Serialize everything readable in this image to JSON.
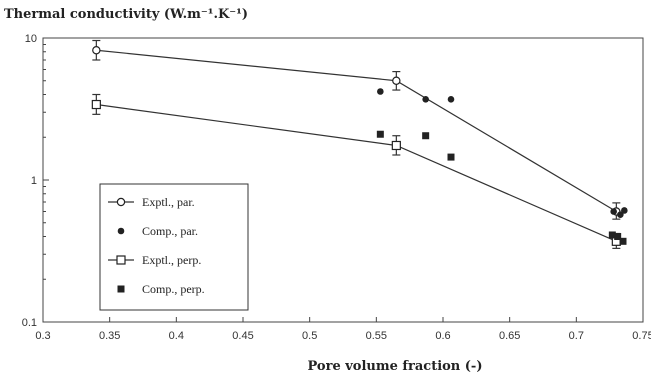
{
  "chart_data": {
    "type": "line",
    "title": "Thermal conductivity (W.m⁻¹.K⁻¹)",
    "xlabel": "Pore volume fraction (-)",
    "ylabel": "",
    "xlim": [
      0.3,
      0.75
    ],
    "ylim": [
      0.1,
      10
    ],
    "yscale": "log",
    "xticks": [
      "0.3",
      "0.35",
      "0.4",
      "0.45",
      "0.5",
      "0.55",
      "0.6",
      "0.65",
      "0.7",
      "0.75"
    ],
    "yticks": [
      "0.1",
      "1",
      "10"
    ],
    "grid": false,
    "legend_position": "bottom-left",
    "series": [
      {
        "name": "Exptl., par.",
        "kind": "line-errorbar",
        "marker": "open-circle",
        "points": [
          {
            "x": 0.34,
            "y": 8.2,
            "err_low": 7.0,
            "err_high": 9.6
          },
          {
            "x": 0.565,
            "y": 5.0,
            "err_low": 4.3,
            "err_high": 5.8
          },
          {
            "x": 0.73,
            "y": 0.6,
            "err_low": 0.53,
            "err_high": 0.69
          }
        ]
      },
      {
        "name": "Comp., par.",
        "kind": "scatter",
        "marker": "filled-circle",
        "points": [
          {
            "x": 0.553,
            "y": 4.2
          },
          {
            "x": 0.587,
            "y": 3.7
          },
          {
            "x": 0.606,
            "y": 3.7
          },
          {
            "x": 0.728,
            "y": 0.6
          },
          {
            "x": 0.733,
            "y": 0.57
          },
          {
            "x": 0.736,
            "y": 0.61
          }
        ]
      },
      {
        "name": "Exptl., perp.",
        "kind": "line-errorbar",
        "marker": "open-square",
        "points": [
          {
            "x": 0.34,
            "y": 3.4,
            "err_low": 2.9,
            "err_high": 4.0
          },
          {
            "x": 0.565,
            "y": 1.75,
            "err_low": 1.5,
            "err_high": 2.05
          },
          {
            "x": 0.73,
            "y": 0.37,
            "err_low": 0.33,
            "err_high": 0.42
          }
        ]
      },
      {
        "name": "Comp., perp.",
        "kind": "scatter",
        "marker": "filled-square",
        "points": [
          {
            "x": 0.553,
            "y": 2.1
          },
          {
            "x": 0.587,
            "y": 2.05
          },
          {
            "x": 0.606,
            "y": 1.45
          },
          {
            "x": 0.727,
            "y": 0.41
          },
          {
            "x": 0.731,
            "y": 0.4
          },
          {
            "x": 0.735,
            "y": 0.37
          }
        ]
      }
    ]
  }
}
